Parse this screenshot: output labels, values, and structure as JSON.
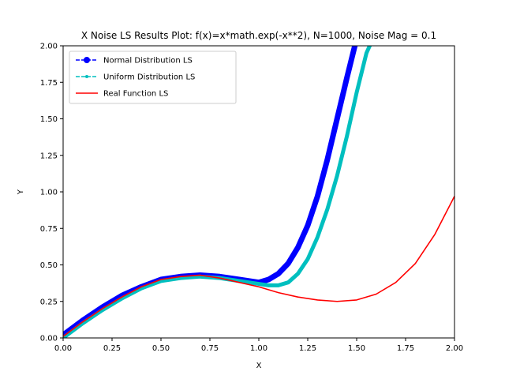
{
  "chart_data": {
    "type": "line",
    "title": "X Noise LS Results Plot: f(x)=x*math.exp(-x**2), N=1000, Noise Mag = 0.1",
    "xlabel": "X",
    "ylabel": "Y",
    "xlim": [
      0,
      2
    ],
    "ylim": [
      0,
      2
    ],
    "grid": false,
    "legend_position": "top-left",
    "x_ticks": [
      "0.00",
      "0.25",
      "0.50",
      "0.75",
      "1.00",
      "1.25",
      "1.50",
      "1.75",
      "2.00"
    ],
    "y_ticks": [
      "0.00",
      "0.25",
      "0.50",
      "0.75",
      "1.00",
      "1.25",
      "1.50",
      "1.75",
      "2.00"
    ],
    "series": [
      {
        "name": "Normal Distribution LS",
        "color": "#0000ff",
        "style": "dashed-circle-marker",
        "x": [
          0.0,
          0.1,
          0.2,
          0.3,
          0.4,
          0.5,
          0.6,
          0.7,
          0.8,
          0.9,
          1.0,
          1.05,
          1.1,
          1.15,
          1.2,
          1.25,
          1.3,
          1.35,
          1.4,
          1.45,
          1.5
        ],
        "y": [
          0.02,
          0.12,
          0.21,
          0.29,
          0.35,
          0.4,
          0.42,
          0.43,
          0.42,
          0.4,
          0.38,
          0.4,
          0.44,
          0.51,
          0.62,
          0.77,
          0.97,
          1.22,
          1.5,
          1.78,
          2.05
        ]
      },
      {
        "name": "Uniform Distribution LS",
        "color": "#00bfbf",
        "style": "dashed-point-marker",
        "x": [
          0.0,
          0.1,
          0.2,
          0.3,
          0.4,
          0.5,
          0.6,
          0.7,
          0.8,
          0.9,
          1.0,
          1.05,
          1.1,
          1.15,
          1.2,
          1.25,
          1.3,
          1.35,
          1.4,
          1.45,
          1.5,
          1.55,
          1.6
        ],
        "y": [
          0.0,
          0.1,
          0.19,
          0.27,
          0.34,
          0.39,
          0.41,
          0.42,
          0.41,
          0.39,
          0.37,
          0.36,
          0.36,
          0.38,
          0.44,
          0.54,
          0.69,
          0.88,
          1.11,
          1.38,
          1.68,
          1.95,
          2.1
        ]
      },
      {
        "name": "Real Function LS",
        "color": "#ff0000",
        "style": "solid",
        "x": [
          0.0,
          0.1,
          0.2,
          0.3,
          0.4,
          0.5,
          0.6,
          0.7,
          0.8,
          0.9,
          1.0,
          1.1,
          1.2,
          1.3,
          1.4,
          1.5,
          1.6,
          1.7,
          1.8,
          1.9,
          2.0
        ],
        "y": [
          0.01,
          0.11,
          0.2,
          0.28,
          0.35,
          0.4,
          0.42,
          0.43,
          0.41,
          0.38,
          0.35,
          0.31,
          0.28,
          0.26,
          0.25,
          0.26,
          0.3,
          0.38,
          0.51,
          0.71,
          0.97
        ]
      }
    ]
  }
}
